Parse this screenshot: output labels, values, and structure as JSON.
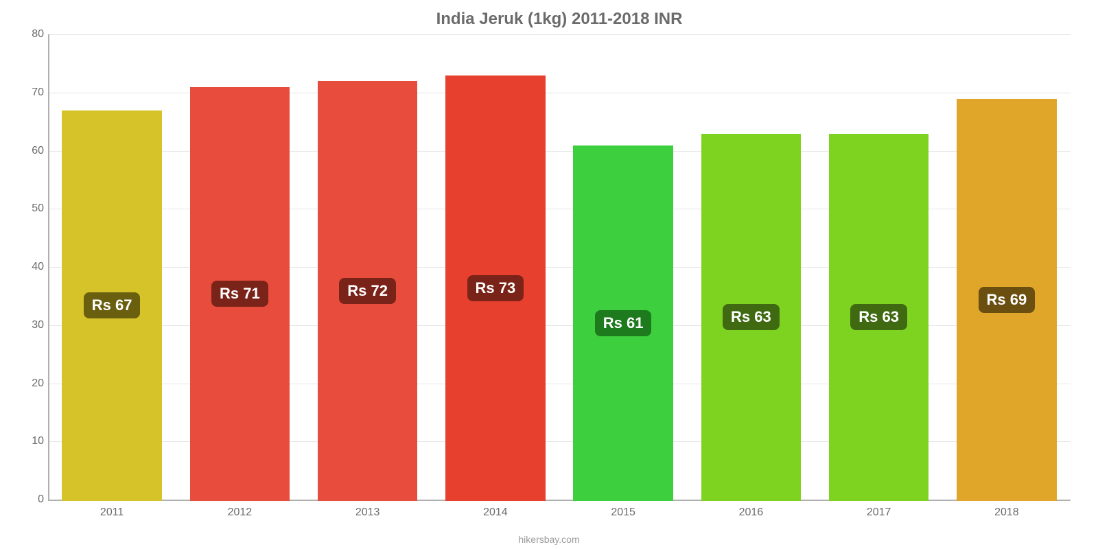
{
  "chart": {
    "type": "bar",
    "title": "India Jeruk (1kg) 2011-2018 INR",
    "title_fontsize": 24,
    "title_color": "#6b6b6b",
    "background_color": "#ffffff",
    "grid_color": "#e5e5e5",
    "axis_color": "#b0b0b0",
    "tick_color": "#6b6b6b",
    "tick_fontsize": 16,
    "ylim_min": 0,
    "ylim_max": 80,
    "ytick_step": 10,
    "bar_width_pct": 78,
    "categories": [
      "2011",
      "2012",
      "2013",
      "2014",
      "2015",
      "2016",
      "2017",
      "2018"
    ],
    "values": [
      67,
      71,
      72,
      73,
      61,
      63,
      63,
      69
    ],
    "bar_colors": [
      "#d6c32a",
      "#e84c3d",
      "#e84c3d",
      "#e8402f",
      "#3ecf3e",
      "#7ed321",
      "#7ed321",
      "#e0a62a"
    ],
    "value_labels": [
      "Rs 67",
      "Rs 71",
      "Rs 72",
      "Rs 73",
      "Rs 61",
      "Rs 63",
      "Rs 63",
      "Rs 69"
    ],
    "badge_colors": [
      "#6a5f0f",
      "#7a2318",
      "#7a2318",
      "#7a2318",
      "#1d7a1d",
      "#3f6a12",
      "#3f6a12",
      "#6a4f10"
    ],
    "badge_fontsize": 22,
    "credit": "hikersbay.com",
    "credit_fontsize": 14,
    "credit_color": "#9a9a9a"
  }
}
